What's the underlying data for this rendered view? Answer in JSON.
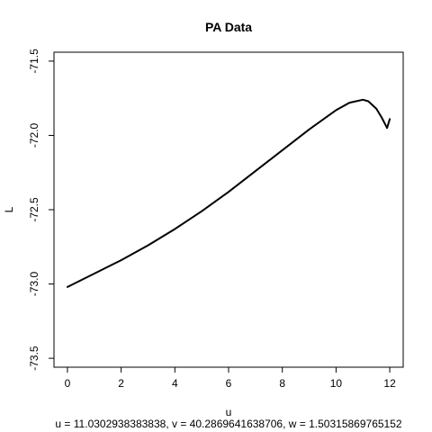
{
  "chart_data": {
    "type": "line",
    "title": "PA Data",
    "xlabel": "u",
    "ylabel": "L",
    "subtitle": "u = 11.0302938383838, v = 40.2869641638706, w = 1.50315869765152",
    "xlim": [
      -0.5,
      12.5
    ],
    "ylim": [
      -73.56,
      -71.44
    ],
    "x_ticks": [
      0,
      2,
      4,
      6,
      8,
      10,
      12
    ],
    "y_ticks": [
      -73.5,
      -73.0,
      -72.5,
      -72.0,
      -71.5
    ],
    "x_tick_labels": [
      "0",
      "2",
      "4",
      "6",
      "8",
      "10",
      "12"
    ],
    "y_tick_labels": [
      "-73.5",
      "-73.0",
      "-72.5",
      "-72.0",
      "-71.5"
    ],
    "grid": false,
    "series": [
      {
        "color": "#000000",
        "x": [
          0,
          1,
          2,
          3,
          4,
          5,
          6,
          7,
          8,
          9,
          10,
          10.5,
          11,
          11.2,
          11.5,
          11.7,
          11.9,
          12.0
        ],
        "y": [
          -73.02,
          -72.93,
          -72.84,
          -72.74,
          -72.63,
          -72.51,
          -72.38,
          -72.24,
          -72.1,
          -71.96,
          -71.83,
          -71.78,
          -71.76,
          -71.77,
          -71.82,
          -71.88,
          -71.95,
          -71.89
        ]
      }
    ]
  }
}
